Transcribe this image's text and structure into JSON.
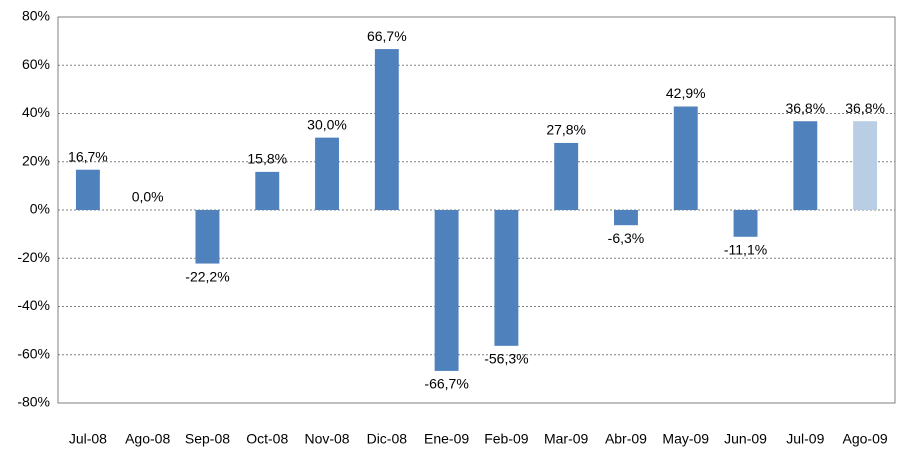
{
  "chart_data": {
    "type": "bar",
    "categories": [
      "Jul-08",
      "Ago-08",
      "Sep-08",
      "Oct-08",
      "Nov-08",
      "Dic-08",
      "Ene-09",
      "Feb-09",
      "Mar-09",
      "Abr-09",
      "May-09",
      "Jun-09",
      "Jul-09",
      "Ago-09"
    ],
    "values": [
      16.7,
      0,
      -22.2,
      15.8,
      30.0,
      66.7,
      -66.7,
      -56.3,
      27.8,
      -6.3,
      42.9,
      -11.1,
      36.8,
      36.8
    ],
    "value_labels": [
      "16,7%",
      "0,0%",
      "-22,2%",
      "15,8%",
      "30,0%",
      "66,7%",
      "-66,7%",
      "-56,3%",
      "27,8%",
      "-6,3%",
      "42,9%",
      "-11,1%",
      "36,8%",
      "36,8%"
    ],
    "colors": [
      "#4f81bd",
      "#4f81bd",
      "#4f81bd",
      "#4f81bd",
      "#4f81bd",
      "#4f81bd",
      "#4f81bd",
      "#4f81bd",
      "#4f81bd",
      "#4f81bd",
      "#4f81bd",
      "#4f81bd",
      "#4f81bd",
      "#b9cde5"
    ],
    "ylim": [
      -80,
      80
    ],
    "yticks": [
      {
        "value": -80,
        "label": "-80%"
      },
      {
        "value": -60,
        "label": "-60%"
      },
      {
        "value": -40,
        "label": "-40%"
      },
      {
        "value": -20,
        "label": "-20%"
      },
      {
        "value": 0,
        "label": "0%"
      },
      {
        "value": 20,
        "label": "20%"
      },
      {
        "value": 40,
        "label": "40%"
      },
      {
        "value": 60,
        "label": "60%"
      },
      {
        "value": 80,
        "label": "80%"
      }
    ],
    "grid": true
  }
}
